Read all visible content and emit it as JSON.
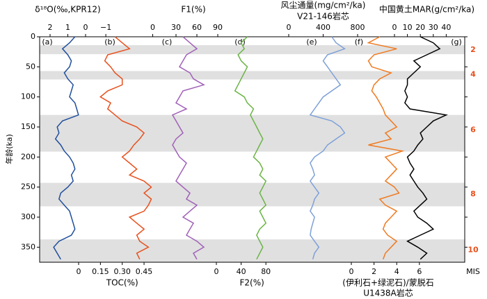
{
  "chart_data": {
    "type": "multi-panel-line",
    "y_label": "年龄(ka)",
    "ylim": [
      0,
      375
    ],
    "yticks": [
      0,
      50,
      100,
      150,
      200,
      250,
      300,
      350
    ],
    "ages": [
      0,
      10,
      20,
      30,
      40,
      50,
      60,
      70,
      80,
      90,
      100,
      110,
      120,
      130,
      140,
      150,
      160,
      170,
      180,
      190,
      200,
      210,
      220,
      230,
      240,
      250,
      260,
      270,
      280,
      290,
      300,
      310,
      320,
      330,
      340,
      350,
      360,
      370
    ],
    "shaded_ages": [
      [
        14,
        29
      ],
      [
        57,
        71
      ],
      [
        130,
        191
      ],
      [
        243,
        282
      ],
      [
        337,
        375
      ]
    ],
    "mis_label": "MIS",
    "mis_stages": [
      2,
      4,
      6,
      8,
      10
    ],
    "mis_ages": [
      22,
      63,
      155,
      262,
      355
    ],
    "panels": [
      {
        "label": "(a)",
        "color": "#1f4e9c",
        "axis": "top",
        "axis_title": [
          "δ¹⁸O(‰,KPR12)"
        ],
        "xlim": [
          2.5,
          -0.5
        ],
        "xticks": [
          2,
          1,
          0
        ],
        "values": [
          0.6,
          0.9,
          1.3,
          1.0,
          0.8,
          0.9,
          1.2,
          1.0,
          0.7,
          0.8,
          0.9,
          0.6,
          0.5,
          0.4,
          1.3,
          1.6,
          1.5,
          1.7,
          1.4,
          1.2,
          0.9,
          0.7,
          0.6,
          0.8,
          0.7,
          1.0,
          1.4,
          1.5,
          1.2,
          0.9,
          0.8,
          0.7,
          0.6,
          0.8,
          1.5,
          1.8,
          1.6,
          1.4
        ]
      },
      {
        "label": "(b)",
        "color": "#e8501c",
        "axis": "bottom",
        "axis_title": [
          "TOC(%)"
        ],
        "xlim": [
          0,
          0.6
        ],
        "xticks": [
          0,
          0.15,
          {
            "value": 0.3,
            "label": "0.30"
          },
          0.45
        ],
        "top_xlim": [
          -1.58,
          0.28
        ],
        "top_xticks": [
          {
            "value": -1,
            "label": "−1"
          },
          0
        ],
        "values": [
          0.25,
          0.3,
          0.35,
          0.2,
          0.18,
          0.22,
          0.25,
          0.3,
          0.3,
          0.2,
          0.15,
          0.22,
          0.2,
          0.25,
          0.3,
          0.4,
          0.45,
          0.42,
          0.38,
          0.35,
          0.3,
          0.35,
          0.4,
          0.35,
          0.45,
          0.5,
          0.45,
          0.5,
          0.48,
          0.45,
          0.35,
          0.4,
          0.45,
          0.4,
          0.42,
          0.48,
          0.4,
          0.42
        ]
      },
      {
        "label": "(c)",
        "color": "#a060b8",
        "axis": "top",
        "axis_title": [
          "F1(%)"
        ],
        "xlim": [
          0,
          110
        ],
        "xticks": [
          30,
          60,
          90
        ],
        "values": [
          40,
          50,
          60,
          45,
          40,
          35,
          50,
          55,
          70,
          40,
          35,
          30,
          45,
          25,
          30,
          35,
          40,
          30,
          25,
          30,
          35,
          45,
          40,
          35,
          30,
          40,
          50,
          45,
          60,
          50,
          40,
          55,
          50,
          45,
          60,
          70,
          55,
          60
        ]
      },
      {
        "label": "(d)",
        "color": "#6ab445",
        "axis": "bottom",
        "axis_title": [
          "F2(%)"
        ],
        "xlim": [
          0,
          115
        ],
        "xticks": [
          0,
          40,
          80
        ],
        "values": [
          50,
          40,
          45,
          35,
          40,
          50,
          45,
          40,
          35,
          30,
          45,
          50,
          60,
          55,
          60,
          65,
          70,
          75,
          70,
          65,
          60,
          70,
          75,
          70,
          80,
          75,
          70,
          75,
          80,
          70,
          75,
          80,
          70,
          65,
          70,
          75,
          70,
          65
        ]
      },
      {
        "label": "(e)",
        "color": "#7da0d8",
        "axis": "top",
        "axis_title": [
          "风尘通量(mg/cm²/ka)",
          "V21-146岩芯"
        ],
        "xlim": [
          0,
          800
        ],
        "xticks": [
          0,
          400,
          800
        ],
        "values": [
          500,
          550,
          650,
          450,
          400,
          450,
          500,
          550,
          600,
          500,
          400,
          350,
          300,
          250,
          500,
          600,
          650,
          550,
          450,
          400,
          300,
          250,
          280,
          300,
          250,
          300,
          350,
          300,
          280,
          250,
          300,
          280,
          260,
          250,
          300,
          350,
          300,
          280
        ]
      },
      {
        "label": "(f)",
        "color": "#f07a20",
        "axis": "bottom",
        "axis_title": [
          "(伊利石+绿泥石)/蒙脱石",
          "U1438A岩芯"
        ],
        "xlim": [
          0,
          6.5
        ],
        "xticks": [
          0,
          2,
          4,
          6
        ],
        "values": [
          2.5,
          1.5,
          4.0,
          2.0,
          1.5,
          1.8,
          3.5,
          2.5,
          2.0,
          1.8,
          2.2,
          2.5,
          2.8,
          3.0,
          3.5,
          4.0,
          3.0,
          3.5,
          1.5,
          4.5,
          3.0,
          3.5,
          4.0,
          3.5,
          3.0,
          3.8,
          4.2,
          2.5,
          3.0,
          4.0,
          3.5,
          3.0,
          2.8,
          3.2,
          4.0,
          3.5,
          3.0,
          2.8
        ]
      },
      {
        "label": "(g)",
        "color": "#000000",
        "axis": "top",
        "axis_title": [
          "中国黄土MAR(g/cm²/ka)"
        ],
        "xlim": [
          0,
          50
        ],
        "xticks": [
          0,
          10,
          20,
          30,
          40
        ],
        "values": [
          20,
          30,
          35,
          25,
          15,
          20,
          15,
          10,
          10,
          8,
          10,
          8,
          12,
          40,
          30,
          25,
          20,
          22,
          18,
          15,
          10,
          12,
          15,
          12,
          15,
          18,
          22,
          25,
          20,
          15,
          18,
          25,
          30,
          20,
          10,
          18,
          25,
          20
        ]
      }
    ]
  }
}
